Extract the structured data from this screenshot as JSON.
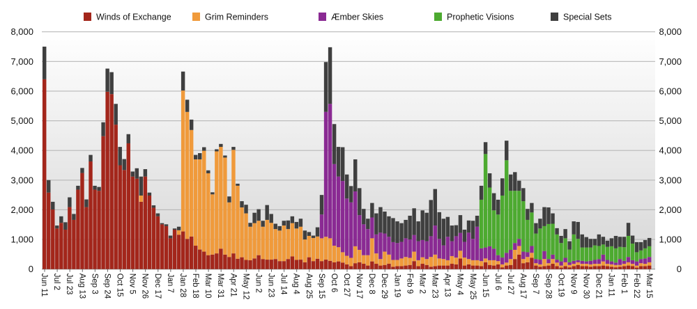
{
  "chart_data": {
    "type": "bar",
    "stacked": true,
    "title": "",
    "xlabel": "",
    "ylabel": "",
    "ylim": [
      0,
      8000
    ],
    "y_ticks": [
      "0",
      "1,000",
      "2,000",
      "3,000",
      "4,000",
      "5,000",
      "6,000",
      "7,000",
      "8,000"
    ],
    "y_axis_sides": "left and right",
    "grid": true,
    "legend_position": "top",
    "bar_interval": "weekly",
    "x_tick_every_n_bars": 3,
    "x_tick_labels": [
      "Jun 11",
      "Jul 2",
      "Jul 23",
      "Aug 13",
      "Sep 3",
      "Sep 24",
      "Oct 15",
      "Nov 5",
      "Nov 26",
      "Dec 17",
      "Jan 7",
      "Jan 28",
      "Feb 18",
      "Mar 10",
      "Mar 31",
      "Apr 21",
      "May 12",
      "Jun 2",
      "Jun 23",
      "Jul 14",
      "Aug 4",
      "Aug 25",
      "Sep 15",
      "Oct 6",
      "Oct 27",
      "Nov 17",
      "Dec 8",
      "Dec 29",
      "Jan 19",
      "Feb 9",
      "Mar 2",
      "Mar 23",
      "Apr 13",
      "May 4",
      "May 25",
      "Jun 15",
      "Jul 6",
      "Jul 27",
      "Aug 17",
      "Sep 7",
      "Sep 28",
      "Oct 19",
      "Nov 9",
      "Nov 30",
      "Dec 21",
      "Jan 11",
      "Feb 1",
      "Feb 22",
      "Mar 15"
    ],
    "series": [
      {
        "name": "Winds of Exchange",
        "color": "#a3261b",
        "values": [
          6400,
          2580,
          2010,
          1370,
          1560,
          1330,
          2090,
          1660,
          2680,
          3240,
          2090,
          3630,
          2680,
          2640,
          4480,
          5980,
          5900,
          4870,
          3500,
          3340,
          4240,
          3120,
          3050,
          2270,
          3120,
          2480,
          2070,
          1780,
          1510,
          1450,
          1040,
          1330,
          1160,
          1270,
          1020,
          1100,
          790,
          660,
          590,
          470,
          490,
          530,
          690,
          490,
          410,
          530,
          350,
          400,
          310,
          300,
          360,
          470,
          340,
          320,
          320,
          340,
          270,
          270,
          340,
          430,
          310,
          320,
          230,
          400,
          270,
          350,
          270,
          320,
          280,
          230,
          260,
          220,
          160,
          100,
          200,
          230,
          180,
          120,
          260,
          180,
          120,
          140,
          180,
          80,
          100,
          100,
          120,
          140,
          270,
          100,
          180,
          140,
          80,
          100,
          120,
          120,
          120,
          180,
          160,
          360,
          120,
          160,
          120,
          120,
          100,
          230,
          140,
          120,
          160,
          60,
          120,
          140,
          340,
          490,
          200,
          230,
          380,
          120,
          80,
          100,
          120,
          180,
          100,
          50,
          100,
          60,
          100,
          140,
          100,
          100,
          80,
          100,
          100,
          120,
          100,
          80,
          60,
          80,
          100,
          120,
          100,
          50,
          100,
          100,
          120
        ]
      },
      {
        "name": "Grim Reminders",
        "color": "#f09a3b",
        "values": [
          0,
          0,
          0,
          0,
          0,
          0,
          0,
          0,
          0,
          0,
          0,
          0,
          0,
          0,
          0,
          0,
          0,
          0,
          0,
          0,
          0,
          0,
          0,
          210,
          0,
          0,
          0,
          0,
          0,
          0,
          0,
          0,
          150,
          4750,
          4280,
          3590,
          2910,
          3040,
          3400,
          2760,
          2030,
          3440,
          3430,
          3270,
          1840,
          3490,
          2460,
          1680,
          1570,
          1130,
          1190,
          1160,
          1090,
          1340,
          1240,
          1010,
          1030,
          1200,
          1010,
          1120,
          1060,
          1110,
          770,
          720,
          780,
          750,
          770,
          770,
          760,
          560,
          480,
          350,
          290,
          280,
          570,
          420,
          290,
          350,
          780,
          350,
          220,
          450,
          310,
          230,
          210,
          260,
          290,
          240,
          320,
          200,
          220,
          200,
          330,
          390,
          240,
          220,
          180,
          260,
          230,
          260,
          270,
          180,
          180,
          180,
          170,
          130,
          160,
          180,
          110,
          100,
          100,
          200,
          310,
          290,
          140,
          180,
          170,
          80,
          80,
          240,
          80,
          160,
          120,
          70,
          130,
          80,
          80,
          90,
          80,
          80,
          80,
          80,
          80,
          140,
          80,
          80,
          80,
          60,
          80,
          110,
          80,
          70,
          100,
          80,
          110
        ]
      },
      {
        "name": "Æmber Skies",
        "color": "#8a2a93",
        "values": [
          0,
          0,
          0,
          0,
          0,
          0,
          0,
          0,
          0,
          0,
          0,
          0,
          0,
          0,
          0,
          0,
          0,
          0,
          0,
          0,
          0,
          0,
          0,
          0,
          0,
          0,
          0,
          0,
          0,
          0,
          0,
          0,
          0,
          0,
          0,
          0,
          0,
          0,
          0,
          0,
          0,
          0,
          0,
          0,
          0,
          0,
          0,
          0,
          0,
          0,
          0,
          0,
          0,
          0,
          0,
          0,
          0,
          0,
          0,
          0,
          0,
          0,
          0,
          0,
          0,
          0,
          800,
          4210,
          4530,
          2750,
          2380,
          2400,
          1930,
          1870,
          1850,
          1170,
          1040,
          880,
          700,
          640,
          890,
          610,
          600,
          600,
          570,
          560,
          630,
          620,
          560,
          640,
          580,
          600,
          700,
          980,
          660,
          460,
          790,
          500,
          720,
          600,
          530,
          890,
          720,
          1130,
          430,
          370,
          470,
          390,
          200,
          230,
          330,
          310,
          230,
          240,
          250,
          160,
          230,
          140,
          160,
          270,
          140,
          150,
          100,
          140,
          150,
          90,
          100,
          70,
          100,
          80,
          120,
          130,
          160,
          230,
          130,
          100,
          80,
          200,
          100,
          180,
          120,
          140,
          140,
          180,
          180
        ]
      },
      {
        "name": "Prophetic Visions",
        "color": "#4daa30",
        "values": [
          0,
          0,
          0,
          0,
          0,
          0,
          0,
          0,
          0,
          0,
          0,
          0,
          0,
          0,
          0,
          0,
          0,
          0,
          0,
          0,
          0,
          0,
          0,
          0,
          0,
          0,
          0,
          0,
          0,
          0,
          0,
          0,
          0,
          0,
          0,
          0,
          0,
          0,
          0,
          0,
          0,
          0,
          0,
          0,
          0,
          0,
          0,
          0,
          0,
          0,
          0,
          0,
          0,
          0,
          0,
          0,
          0,
          0,
          0,
          0,
          0,
          0,
          0,
          0,
          0,
          0,
          0,
          0,
          0,
          0,
          0,
          0,
          0,
          0,
          0,
          0,
          0,
          0,
          0,
          0,
          0,
          0,
          0,
          0,
          0,
          0,
          0,
          0,
          0,
          0,
          0,
          0,
          0,
          0,
          0,
          0,
          0,
          0,
          0,
          0,
          0,
          0,
          0,
          0,
          1640,
          3150,
          1980,
          1290,
          1370,
          2090,
          3120,
          1990,
          1760,
          1620,
          1700,
          1090,
          1130,
          860,
          1050,
          840,
          1180,
          1040,
          850,
          620,
          660,
          430,
          890,
          720,
          450,
          470,
          450,
          490,
          440,
          340,
          440,
          510,
          480,
          410,
          460,
          710,
          560,
          310,
          290,
          340,
          360
        ]
      },
      {
        "name": "Special Sets",
        "color": "#3f3f3f",
        "values": [
          1100,
          420,
          260,
          100,
          220,
          250,
          330,
          200,
          130,
          170,
          260,
          220,
          130,
          130,
          470,
          780,
          740,
          700,
          620,
          370,
          310,
          170,
          350,
          640,
          250,
          100,
          80,
          100,
          40,
          60,
          90,
          40,
          120,
          640,
          410,
          350,
          150,
          210,
          120,
          100,
          70,
          70,
          100,
          70,
          200,
          100,
          70,
          210,
          290,
          130,
          350,
          390,
          200,
          500,
          300,
          180,
          150,
          160,
          290,
          230,
          220,
          270,
          300,
          130,
          80,
          310,
          660,
          1680,
          1910,
          1350,
          1000,
          1140,
          810,
          550,
          1080,
          910,
          520,
          350,
          490,
          710,
          860,
          740,
          690,
          810,
          730,
          630,
          620,
          800,
          900,
          670,
          1000,
          960,
          1220,
          1230,
          900,
          900,
          670,
          530,
          370,
          600,
          410,
          410,
          610,
          370,
          470,
          400,
          480,
          580,
          500,
          580,
          660,
          550,
          630,
          340,
          440,
          370,
          320,
          350,
          330,
          640,
          560,
          350,
          210,
          240,
          310,
          280,
          440,
          570,
          440,
          350,
          290,
          220,
          390,
          260,
          210,
          270,
          420,
          340,
          350,
          440,
          270,
          340,
          280,
          280,
          280
        ]
      }
    ]
  }
}
